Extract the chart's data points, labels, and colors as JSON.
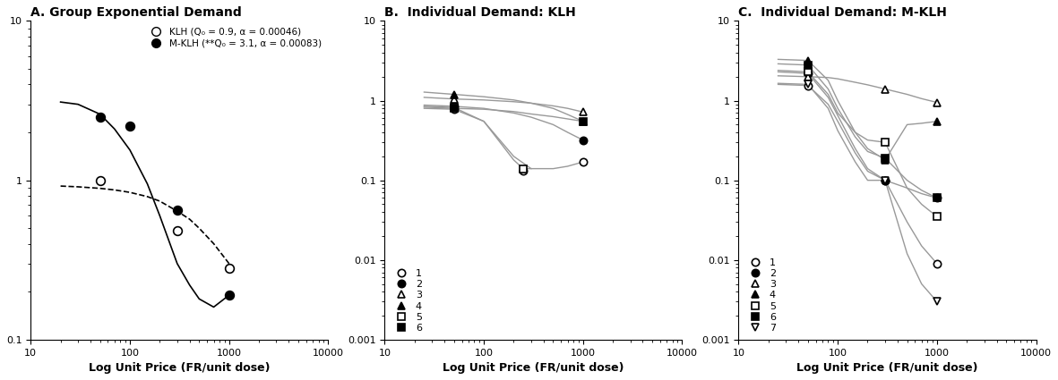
{
  "panel_A": {
    "title": "A. Group Exponential Demand",
    "xlabel": "Log Unit Price (FR/unit dose)",
    "xlim": [
      10,
      10000
    ],
    "ylim": [
      0.1,
      10
    ],
    "KLH_points": [
      [
        50,
        1.0
      ],
      [
        300,
        0.48
      ],
      [
        1000,
        0.28
      ]
    ],
    "MKLH_points": [
      [
        50,
        2.5
      ],
      [
        100,
        2.2
      ],
      [
        300,
        0.65
      ],
      [
        1000,
        0.19
      ]
    ],
    "KLH_curve_x": [
      20,
      30,
      50,
      70,
      100,
      150,
      200,
      300,
      400,
      500,
      700,
      1000
    ],
    "KLH_curve_y": [
      0.92,
      0.91,
      0.89,
      0.87,
      0.84,
      0.79,
      0.74,
      0.64,
      0.57,
      0.5,
      0.4,
      0.3
    ],
    "MKLH_curve_x": [
      20,
      30,
      50,
      70,
      100,
      150,
      200,
      300,
      400,
      500,
      700,
      1000
    ],
    "MKLH_curve_y": [
      3.1,
      3.0,
      2.6,
      2.1,
      1.55,
      0.95,
      0.6,
      0.3,
      0.22,
      0.18,
      0.16,
      0.19
    ],
    "legend_klh": "KLH (Q₀ = 0.9, α = 0.00046)",
    "legend_mklh": "M-KLH (**Q₀ = 3.1, α = 0.00083)"
  },
  "panel_B": {
    "title": "B.  Individual Demand: KLH",
    "xlabel": "Log Unit Price (FR/unit dose)",
    "xlim": [
      10,
      10000
    ],
    "ylim": [
      0.001,
      10
    ],
    "subjects": [
      {
        "id": 1,
        "marker": "o",
        "filled": false,
        "x": [
          50,
          250,
          1000
        ],
        "y": [
          0.78,
          0.13,
          0.17
        ]
      },
      {
        "id": 2,
        "marker": "o",
        "filled": true,
        "x": [
          50,
          1000
        ],
        "y": [
          0.85,
          0.32
        ]
      },
      {
        "id": 3,
        "marker": "^",
        "filled": false,
        "x": [
          50,
          1000
        ],
        "y": [
          1.05,
          0.72
        ]
      },
      {
        "id": 4,
        "marker": "^",
        "filled": true,
        "x": [
          50,
          1000
        ],
        "y": [
          1.2,
          0.55
        ]
      },
      {
        "id": 5,
        "marker": "s",
        "filled": false,
        "x": [
          50,
          250
        ],
        "y": [
          0.82,
          0.14
        ]
      },
      {
        "id": 6,
        "marker": "s",
        "filled": true,
        "x": [
          50,
          1000
        ],
        "y": [
          0.8,
          0.55
        ]
      }
    ],
    "curves": [
      {
        "x": [
          25,
          50,
          100,
          200,
          300,
          500,
          700,
          1000
        ],
        "y": [
          0.8,
          0.78,
          0.55,
          0.2,
          0.14,
          0.14,
          0.15,
          0.17
        ]
      },
      {
        "x": [
          25,
          50,
          100,
          200,
          300,
          500,
          700,
          1000
        ],
        "y": [
          0.88,
          0.85,
          0.8,
          0.7,
          0.62,
          0.5,
          0.4,
          0.32
        ]
      },
      {
        "x": [
          25,
          50,
          100,
          200,
          300,
          500,
          700,
          1000
        ],
        "y": [
          1.1,
          1.05,
          1.02,
          0.97,
          0.93,
          0.86,
          0.8,
          0.72
        ]
      },
      {
        "x": [
          25,
          50,
          100,
          200,
          300,
          500,
          700,
          1000
        ],
        "y": [
          1.28,
          1.2,
          1.12,
          1.02,
          0.93,
          0.8,
          0.67,
          0.55
        ]
      },
      {
        "x": [
          25,
          50,
          100,
          200,
          250,
          300
        ],
        "y": [
          0.85,
          0.82,
          0.55,
          0.18,
          0.14,
          0.14
        ]
      },
      {
        "x": [
          25,
          50,
          100,
          200,
          300,
          500,
          700,
          1000
        ],
        "y": [
          0.83,
          0.8,
          0.78,
          0.73,
          0.68,
          0.63,
          0.59,
          0.55
        ]
      }
    ]
  },
  "panel_C": {
    "title": "C.  Individual Demand: M-KLH",
    "xlabel": "Log Unit Price (FR/unit dose)",
    "xlim": [
      10,
      10000
    ],
    "ylim": [
      0.001,
      10
    ],
    "subjects": [
      {
        "id": 1,
        "marker": "o",
        "filled": false,
        "x": [
          50,
          300,
          1000
        ],
        "y": [
          1.55,
          0.1,
          0.009
        ]
      },
      {
        "id": 2,
        "marker": "o",
        "filled": true,
        "x": [
          50,
          300,
          1000
        ],
        "y": [
          2.2,
          0.1,
          0.06
        ]
      },
      {
        "id": 3,
        "marker": "^",
        "filled": false,
        "x": [
          50,
          300,
          1000
        ],
        "y": [
          2.0,
          1.4,
          0.95
        ]
      },
      {
        "id": 4,
        "marker": "^",
        "filled": true,
        "x": [
          50,
          300,
          1000
        ],
        "y": [
          3.2,
          0.18,
          0.55
        ]
      },
      {
        "id": 5,
        "marker": "s",
        "filled": false,
        "x": [
          50,
          300,
          1000
        ],
        "y": [
          2.3,
          0.3,
          0.035
        ]
      },
      {
        "id": 6,
        "marker": "s",
        "filled": true,
        "x": [
          50,
          300,
          1000
        ],
        "y": [
          2.8,
          0.19,
          0.06
        ]
      },
      {
        "id": 7,
        "marker": "v",
        "filled": false,
        "x": [
          50,
          300,
          1000
        ],
        "y": [
          1.6,
          0.1,
          0.003
        ]
      }
    ],
    "curves": [
      {
        "x": [
          25,
          50,
          80,
          100,
          150,
          200,
          300,
          500,
          700,
          1000
        ],
        "y": [
          1.6,
          1.55,
          0.9,
          0.55,
          0.22,
          0.13,
          0.1,
          0.03,
          0.015,
          0.009
        ]
      },
      {
        "x": [
          25,
          50,
          80,
          100,
          150,
          200,
          300,
          500,
          700,
          1000
        ],
        "y": [
          2.3,
          2.2,
          1.1,
          0.65,
          0.25,
          0.14,
          0.1,
          0.08,
          0.068,
          0.06
        ]
      },
      {
        "x": [
          25,
          50,
          80,
          100,
          150,
          200,
          300,
          500,
          700,
          1000
        ],
        "y": [
          2.05,
          2.0,
          1.95,
          1.88,
          1.7,
          1.58,
          1.4,
          1.2,
          1.06,
          0.95
        ]
      },
      {
        "x": [
          25,
          50,
          80,
          100,
          150,
          200,
          300,
          500,
          700,
          1000
        ],
        "y": [
          3.3,
          3.2,
          1.8,
          1.0,
          0.4,
          0.25,
          0.18,
          0.5,
          0.52,
          0.55
        ]
      },
      {
        "x": [
          25,
          50,
          80,
          100,
          150,
          200,
          300,
          500,
          700,
          1000
        ],
        "y": [
          2.4,
          2.3,
          1.2,
          0.7,
          0.4,
          0.32,
          0.3,
          0.08,
          0.05,
          0.035
        ]
      },
      {
        "x": [
          25,
          50,
          80,
          100,
          150,
          200,
          300,
          500,
          700,
          1000
        ],
        "y": [
          2.9,
          2.8,
          1.4,
          0.8,
          0.35,
          0.23,
          0.19,
          0.1,
          0.075,
          0.06
        ]
      },
      {
        "x": [
          25,
          50,
          80,
          100,
          150,
          200,
          300,
          500,
          700,
          1000
        ],
        "y": [
          1.65,
          1.6,
          0.8,
          0.42,
          0.17,
          0.1,
          0.1,
          0.012,
          0.005,
          0.003
        ]
      }
    ]
  },
  "line_color": "#999999",
  "marker_color_open": "white",
  "marker_color_filled": "black",
  "marker_edge_color": "black"
}
